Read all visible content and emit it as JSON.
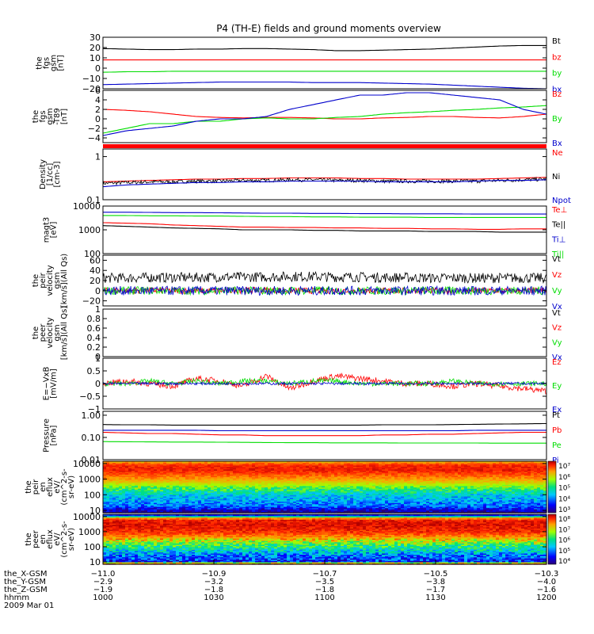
{
  "title": "P4 (TH-E) fields and ground moments overview",
  "colors": {
    "black": "#000000",
    "red": "#ff0000",
    "green": "#00dd00",
    "blue": "#0000cc"
  },
  "chart_data": [
    {
      "type": "line",
      "id": "p1",
      "ylabel": [
        "the",
        "fgs",
        "gsm",
        "[nT]"
      ],
      "ylim": [
        -20,
        30
      ],
      "yticks": [
        30,
        20,
        10,
        0,
        -10,
        -20
      ],
      "series": [
        {
          "name": "Bt",
          "color": "black",
          "values": [
            19,
            18.5,
            18,
            18,
            18.5,
            18.5,
            19,
            19,
            18.5,
            18,
            17,
            17,
            17.5,
            18,
            18.5,
            19.5,
            20.5,
            21.5,
            22,
            22
          ]
        },
        {
          "name": "bz",
          "color": "red",
          "values": [
            8,
            8,
            8,
            8,
            8,
            8,
            8,
            8,
            8,
            8,
            8,
            8,
            8,
            8,
            8,
            8,
            8,
            8,
            8,
            8
          ]
        },
        {
          "name": "by",
          "color": "green",
          "values": [
            -4,
            -3.5,
            -3.5,
            -3,
            -3,
            -3,
            -3,
            -3,
            -3,
            -3,
            -3,
            -3,
            -3,
            -3,
            -3,
            -3,
            -3,
            -3,
            -3,
            -3
          ]
        },
        {
          "name": "bx",
          "color": "blue",
          "values": [
            -16,
            -15.5,
            -15,
            -14.5,
            -14,
            -13.5,
            -13.5,
            -13.5,
            -13.5,
            -14,
            -14,
            -14,
            -14.5,
            -15,
            -15.5,
            -16.5,
            -17.5,
            -18.5,
            -19.5,
            -20
          ]
        }
      ]
    },
    {
      "type": "line",
      "id": "p2",
      "ylabel": [
        "the",
        "fgs",
        "gsm",
        "-T89",
        "[nT]"
      ],
      "ylim": [
        -5,
        6
      ],
      "yticks": [
        6,
        4,
        2,
        0,
        -2,
        -4
      ],
      "series": [
        {
          "name": "Bz",
          "color": "red",
          "values": [
            2,
            1.8,
            1.5,
            1,
            0.5,
            0.3,
            0.2,
            0.3,
            0.3,
            0.2,
            0,
            0,
            0.2,
            0.3,
            0.5,
            0.5,
            0.3,
            0.2,
            0.5,
            1
          ]
        },
        {
          "name": "By",
          "color": "green",
          "values": [
            -3,
            -2,
            -1,
            -1,
            -0.5,
            -0.5,
            0,
            0.2,
            0,
            0,
            0.3,
            0.5,
            1,
            1.3,
            1.5,
            1.8,
            2,
            2.3,
            2.5,
            2.8
          ]
        },
        {
          "name": "Bx",
          "color": "blue",
          "values": [
            -3.5,
            -2.5,
            -2,
            -1.5,
            -0.5,
            0,
            0,
            0.5,
            2,
            3,
            4,
            5,
            5,
            5.5,
            5.5,
            5,
            4.5,
            4,
            2,
            1
          ]
        }
      ]
    },
    {
      "type": "line",
      "id": "p3",
      "log": true,
      "ylabel": [
        "Density",
        "[1/cc]",
        "[cm-3]"
      ],
      "ylim": [
        0.1,
        1.5
      ],
      "yticks": [
        1.0,
        0.1
      ],
      "series": [
        {
          "name": "Ne",
          "color": "red",
          "values": [
            0.26,
            0.27,
            0.28,
            0.29,
            0.3,
            0.3,
            0.31,
            0.31,
            0.32,
            0.32,
            0.32,
            0.31,
            0.31,
            0.3,
            0.3,
            0.3,
            0.3,
            0.31,
            0.32,
            0.33
          ]
        },
        {
          "name": "Ni",
          "color": "black",
          "noise": 0.03,
          "values": [
            0.24,
            0.25,
            0.26,
            0.26,
            0.27,
            0.27,
            0.28,
            0.28,
            0.29,
            0.29,
            0.28,
            0.28,
            0.27,
            0.27,
            0.27,
            0.27,
            0.27,
            0.28,
            0.29,
            0.3
          ]
        },
        {
          "name": "Npot",
          "color": "blue",
          "values": [
            0.2,
            0.22,
            0.23,
            0.24,
            0.25,
            0.25,
            0.26,
            0.26,
            0.27,
            0.27,
            0.27,
            0.27,
            0.26,
            0.26,
            0.26,
            0.26,
            0.27,
            0.28,
            0.28,
            0.29
          ]
        }
      ]
    },
    {
      "type": "line",
      "id": "p4",
      "log": true,
      "ylabel": [
        "magt3",
        "[eV]"
      ],
      "ylim": [
        100,
        10000
      ],
      "yticks": [
        10000,
        1000,
        100
      ],
      "series": [
        {
          "name": "Te⊥",
          "color": "red",
          "values": [
            2000,
            1900,
            1800,
            1600,
            1500,
            1400,
            1300,
            1300,
            1250,
            1250,
            1200,
            1200,
            1150,
            1150,
            1100,
            1100,
            1050,
            1050,
            1100,
            1100
          ]
        },
        {
          "name": "Te||",
          "color": "black",
          "values": [
            1500,
            1400,
            1300,
            1200,
            1150,
            1100,
            1000,
            1000,
            1000,
            950,
            950,
            900,
            900,
            900,
            850,
            850,
            850,
            800,
            800,
            800
          ]
        },
        {
          "name": "Ti⊥",
          "color": "blue",
          "values": [
            5500,
            5500,
            5400,
            5300,
            5300,
            5200,
            5100,
            5000,
            5000,
            4900,
            4900,
            4800,
            4800,
            4700,
            4700,
            4700,
            4600,
            4600,
            4600,
            4600
          ]
        },
        {
          "name": "Ti||",
          "color": "green",
          "values": [
            4000,
            4000,
            3900,
            3900,
            3800,
            3800,
            3700,
            3600,
            3600,
            3500,
            3500,
            3400,
            3400,
            3400,
            3300,
            3300,
            3300,
            3300,
            3300,
            3300
          ]
        }
      ]
    },
    {
      "type": "line",
      "id": "p5",
      "ylabel": [
        "the",
        "peir",
        "velocity",
        "gsm",
        "[km/s](All Qs)"
      ],
      "ylim": [
        -30,
        70
      ],
      "yticks": [
        60,
        40,
        20,
        0,
        -20
      ],
      "ytick_labels": [
        "60",
        "40",
        "20",
        "0",
        "−20"
      ],
      "series": [
        {
          "name": "Vt",
          "color": "black",
          "noise": 10,
          "values": [
            25,
            25,
            26,
            26,
            26,
            27,
            27,
            27,
            28,
            28,
            27,
            27,
            26,
            26,
            25,
            25,
            25,
            25,
            25,
            25
          ]
        },
        {
          "name": "Vz",
          "color": "red",
          "noise": 6,
          "values": [
            0,
            0,
            1,
            0,
            0,
            0,
            1,
            1,
            0,
            0,
            0,
            0,
            0,
            0,
            0,
            0,
            0,
            0,
            0,
            0
          ]
        },
        {
          "name": "Vy",
          "color": "green",
          "noise": 8,
          "values": [
            0,
            0,
            0,
            0,
            0,
            0,
            0,
            0,
            0,
            0,
            0,
            0,
            0,
            0,
            0,
            0,
            0,
            0,
            0,
            0
          ]
        },
        {
          "name": "Vx",
          "color": "blue",
          "noise": 9,
          "values": [
            0,
            0,
            0,
            0,
            0,
            0,
            0,
            0,
            0,
            0,
            0,
            0,
            0,
            0,
            0,
            0,
            0,
            0,
            0,
            0
          ]
        }
      ]
    },
    {
      "type": "line",
      "id": "p6",
      "ylabel": [
        "the",
        "peer",
        "velocity",
        "gsm",
        "[km/s](All Qs)"
      ],
      "ylim": [
        0,
        1
      ],
      "yticks": [
        1.0,
        0.8,
        0.6,
        0.4,
        0.2,
        0.0
      ],
      "series": [
        {
          "name": "Vt",
          "color": "black",
          "values": []
        },
        {
          "name": "Vz",
          "color": "red",
          "values": []
        },
        {
          "name": "Vy",
          "color": "green",
          "values": []
        },
        {
          "name": "Vx",
          "color": "blue",
          "values": []
        }
      ]
    },
    {
      "type": "line",
      "id": "p7",
      "ylabel": [
        "E=−VxB",
        "[mV/m]"
      ],
      "ylim": [
        -1,
        1
      ],
      "yticks": [
        1.0,
        0.5,
        0.0,
        -0.5,
        -1.0
      ],
      "series": [
        {
          "name": "Ez",
          "color": "red",
          "noise": 0.12,
          "values": [
            0,
            0.1,
            0,
            -0.1,
            0.2,
            0.1,
            -0.1,
            0.3,
            -0.2,
            0.1,
            0.3,
            0.2,
            0.1,
            0,
            0,
            -0.1,
            0,
            -0.1,
            -0.2,
            -0.3
          ]
        },
        {
          "name": "Ey",
          "color": "green",
          "noise": 0.1,
          "values": [
            0,
            0,
            0.1,
            0,
            0.1,
            0,
            0.1,
            0.1,
            0,
            0.1,
            0.1,
            0,
            0,
            0,
            0,
            0.1,
            0,
            0,
            0,
            0
          ]
        },
        {
          "name": "Ex",
          "color": "blue",
          "noise": 0.05,
          "values": [
            0,
            0,
            0,
            0,
            0,
            0,
            0,
            0,
            0,
            0,
            0,
            0,
            0,
            0,
            0,
            0,
            0,
            0,
            0,
            0
          ]
        }
      ]
    },
    {
      "type": "line",
      "id": "p8",
      "log": true,
      "ylabel": [
        "Pressure",
        "[nPa]"
      ],
      "ylim": [
        0.01,
        1.5
      ],
      "yticks": [
        1.0,
        0.1,
        0.01
      ],
      "ytick_labels": [
        "1.00",
        "0.10",
        "0.01"
      ],
      "series": [
        {
          "name": "Pt",
          "color": "black",
          "values": [
            0.38,
            0.37,
            0.37,
            0.36,
            0.36,
            0.36,
            0.36,
            0.36,
            0.36,
            0.36,
            0.36,
            0.36,
            0.37,
            0.37,
            0.37,
            0.38,
            0.39,
            0.4,
            0.41,
            0.42
          ]
        },
        {
          "name": "Pb",
          "color": "red",
          "values": [
            0.17,
            0.16,
            0.15,
            0.15,
            0.14,
            0.13,
            0.13,
            0.12,
            0.12,
            0.12,
            0.12,
            0.12,
            0.13,
            0.13,
            0.14,
            0.14,
            0.15,
            0.16,
            0.17,
            0.17
          ]
        },
        {
          "name": "Pe",
          "color": "green",
          "values": [
            0.065,
            0.064,
            0.063,
            0.062,
            0.062,
            0.061,
            0.06,
            0.059,
            0.058,
            0.058,
            0.057,
            0.057,
            0.057,
            0.056,
            0.056,
            0.056,
            0.056,
            0.055,
            0.055,
            0.055
          ]
        },
        {
          "name": "Pi",
          "color": "blue",
          "values": [
            0.21,
            0.21,
            0.21,
            0.21,
            0.21,
            0.2,
            0.2,
            0.2,
            0.2,
            0.2,
            0.2,
            0.2,
            0.2,
            0.2,
            0.2,
            0.2,
            0.21,
            0.21,
            0.21,
            0.21
          ]
        }
      ]
    },
    {
      "type": "heatmap",
      "id": "p9",
      "log": true,
      "ylabel": [
        "the",
        "peir",
        "en",
        "eflux",
        "eV/",
        "(cm^2-s-",
        "sr-eV)"
      ],
      "ylim": [
        7,
        14000
      ],
      "yticks": [
        10000,
        1000,
        100,
        10
      ],
      "colorbar": {
        "ticks": [
          "10⁷",
          "10⁶",
          "10⁵",
          "10⁴",
          "10³"
        ]
      },
      "profile": [
        [
          7,
          1
        ],
        [
          10,
          1.5
        ],
        [
          20,
          2.5
        ],
        [
          50,
          3
        ],
        [
          100,
          3.3
        ],
        [
          300,
          4.5
        ],
        [
          600,
          5.3
        ],
        [
          1000,
          5.8
        ],
        [
          2000,
          6.2
        ],
        [
          4000,
          6.6
        ],
        [
          8000,
          6.5
        ],
        [
          12000,
          6
        ],
        [
          14000,
          5.5
        ]
      ]
    },
    {
      "type": "heatmap",
      "id": "p10",
      "log": true,
      "ylabel": [
        "the",
        "peer",
        "en",
        "eflux",
        "eV/",
        "(cm^2-s-",
        "sr-eV)"
      ],
      "ylim": [
        7,
        14000
      ],
      "yticks": [
        10000,
        1000,
        100,
        10
      ],
      "colorbar": {
        "ticks": [
          "10⁸",
          "10⁷",
          "10⁶",
          "10⁵",
          "10⁴"
        ]
      },
      "profile": [
        [
          7,
          7.6
        ],
        [
          9,
          7.5
        ],
        [
          10,
          4.2
        ],
        [
          30,
          4.8
        ],
        [
          80,
          5.5
        ],
        [
          200,
          6.3
        ],
        [
          500,
          7.2
        ],
        [
          1000,
          7.6
        ],
        [
          3000,
          7.8
        ],
        [
          6000,
          7.7
        ],
        [
          9000,
          7
        ],
        [
          12000,
          4.5
        ],
        [
          14000,
          4
        ]
      ]
    }
  ],
  "xaxis": {
    "rows": [
      {
        "label": "the_X-GSM",
        "values": [
          "−11.0",
          "−10.9",
          "−10.7",
          "−10.5",
          "−10.3"
        ]
      },
      {
        "label": "the_Y-GSM",
        "values": [
          "−2.9",
          "−3.2",
          "−3.5",
          "−3.8",
          "−4.0"
        ]
      },
      {
        "label": "the_Z-GSM",
        "values": [
          "−1.9",
          "−1.8",
          "−1.8",
          "−1.7",
          "−1.6"
        ]
      },
      {
        "label": "hhmm",
        "values": [
          "1000",
          "1030",
          "1100",
          "1130",
          "1200"
        ]
      }
    ],
    "date": "2009 Mar 01"
  }
}
